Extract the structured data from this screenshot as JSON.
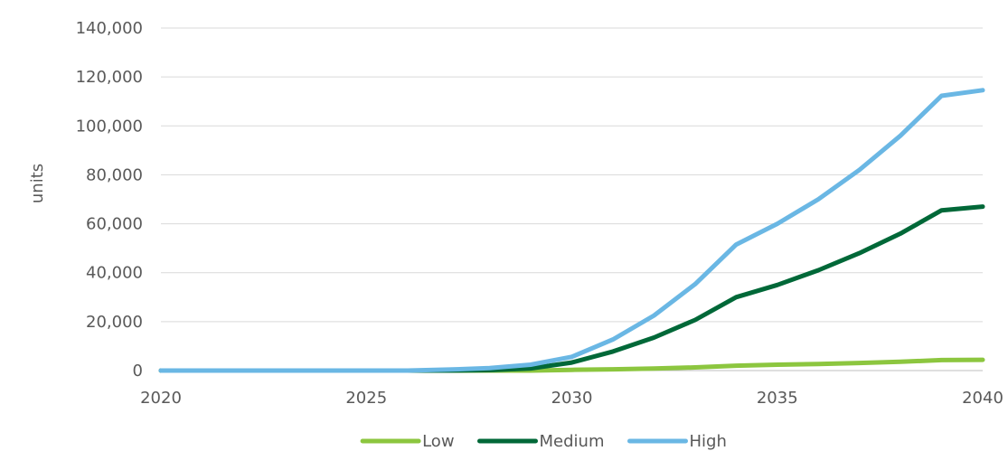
{
  "chart_data": {
    "type": "line",
    "title": "",
    "xlabel": "",
    "ylabel": "units",
    "xlim": [
      2020,
      2040
    ],
    "ylim": [
      0,
      140000
    ],
    "x_ticks": [
      2020,
      2025,
      2030,
      2035,
      2040
    ],
    "x_tick_labels": [
      "2020",
      "2025",
      "2030",
      "2035",
      "2040"
    ],
    "y_ticks": [
      0,
      20000,
      40000,
      60000,
      80000,
      100000,
      120000,
      140000
    ],
    "y_tick_labels": [
      "0",
      "20,000",
      "40,000",
      "60,000",
      "80,000",
      "100,000",
      "120,000",
      "140,000"
    ],
    "grid": "horizontal",
    "legend_position": "bottom",
    "x": [
      2020,
      2021,
      2022,
      2023,
      2024,
      2025,
      2026,
      2027,
      2028,
      2029,
      2030,
      2031,
      2032,
      2033,
      2034,
      2035,
      2036,
      2037,
      2038,
      2039,
      2040
    ],
    "series": [
      {
        "name": "Low",
        "color": "#8cc63f",
        "values": [
          0,
          0,
          0,
          0,
          0,
          0,
          0,
          0,
          0,
          0,
          300,
          500,
          800,
          1300,
          2000,
          2400,
          2700,
          3100,
          3600,
          4300,
          4400
        ]
      },
      {
        "name": "Medium",
        "color": "#006838",
        "values": [
          0,
          0,
          0,
          0,
          0,
          0,
          0,
          0,
          200,
          900,
          3300,
          7800,
          13500,
          20700,
          30000,
          35000,
          41000,
          48000,
          56000,
          65500,
          67000
        ]
      },
      {
        "name": "High",
        "color": "#6ab7e4",
        "values": [
          0,
          0,
          0,
          0,
          0,
          0,
          0,
          400,
          1000,
          2400,
          5600,
          12700,
          22500,
          35300,
          51500,
          60000,
          70000,
          82000,
          96000,
          112300,
          114600
        ]
      }
    ]
  }
}
